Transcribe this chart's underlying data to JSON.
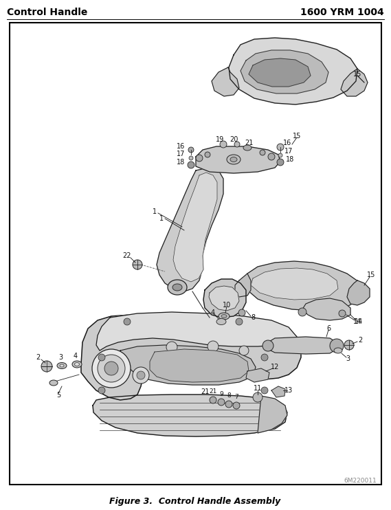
{
  "title_left": "Control Handle",
  "title_right": "1600 YRM 1004",
  "caption": "Figure 3.  Control Handle Assembly",
  "watermark": "6M220011",
  "border_color": "#000000",
  "bg_color": "#ffffff",
  "text_color": "#000000",
  "fig_width": 5.69,
  "fig_height": 7.42,
  "dpi": 100,
  "title_fontsize": 10,
  "caption_fontsize": 9,
  "watermark_fontsize": 6.5,
  "partnumber_fontsize": 7
}
